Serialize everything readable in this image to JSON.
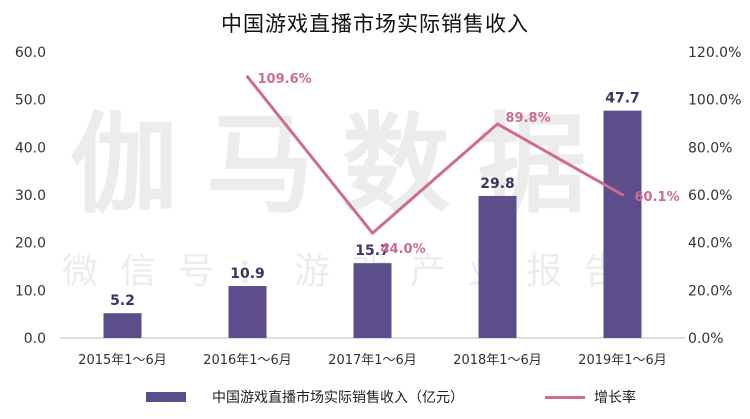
{
  "title": "中国游戏直播市场实际销售收入",
  "watermark": {
    "main": "伽马数据",
    "sub": "微信号：游戏产业报告"
  },
  "colors": {
    "bar": "#5b4e8a",
    "line": "#cf6b92",
    "axis_text": "#333333",
    "bar_label": "#3d3462",
    "line_label": "#cf6b92"
  },
  "chart_data": {
    "type": "bar",
    "categories": [
      "2015年1～6月",
      "2016年1～6月",
      "2017年1～6月",
      "2018年1～6月",
      "2019年1～6月"
    ],
    "series": [
      {
        "name": "中国游戏直播市场实际销售收入（亿元）",
        "type": "bar",
        "axis": "left",
        "values": [
          5.2,
          10.9,
          15.7,
          29.8,
          47.7
        ],
        "labels": [
          "5.2",
          "10.9",
          "15.7",
          "29.8",
          "47.7"
        ]
      },
      {
        "name": "增长率",
        "type": "line",
        "axis": "right",
        "values": [
          null,
          109.6,
          44.0,
          89.8,
          60.1
        ],
        "labels": [
          "",
          "109.6%",
          "44.0%",
          "89.8%",
          "60.1%"
        ]
      }
    ],
    "y_left": {
      "range": [
        0,
        60
      ],
      "ticks": [
        "0.0",
        "10.0",
        "20.0",
        "30.0",
        "40.0",
        "50.0",
        "60.0"
      ]
    },
    "y_right": {
      "range": [
        0,
        120
      ],
      "ticks": [
        "0.0%",
        "20.0%",
        "40.0%",
        "60.0%",
        "80.0%",
        "100.0%",
        "120.0%"
      ]
    },
    "grid": false,
    "legend": "bottom"
  }
}
